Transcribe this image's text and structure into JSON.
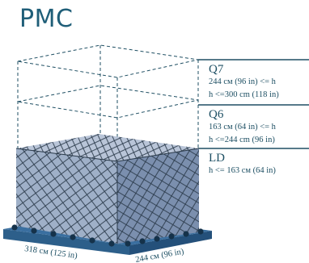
{
  "title": "PMC",
  "levels": [
    {
      "code": "Q7",
      "line1": "244 см (96 in) <= h",
      "line2": "h <=300 cm (118 in)"
    },
    {
      "code": "Q6",
      "line1": "163 см (64 in) <= h",
      "line2": "h <=244 cm (96 in)"
    },
    {
      "code": "LD",
      "line1": "h <= 163 см (64 in)",
      "line2": ""
    }
  ],
  "dimensions": {
    "length": "318 см (125 in)",
    "width": "244 см (96 in)"
  },
  "colors": {
    "accent": "#1f5e78",
    "cargo_top": "#b9c5d8",
    "cargo_front": "#9fb0c8",
    "cargo_side": "#7b8fae",
    "pallet": "#2d5f8a",
    "net": "#2a3a4a"
  }
}
